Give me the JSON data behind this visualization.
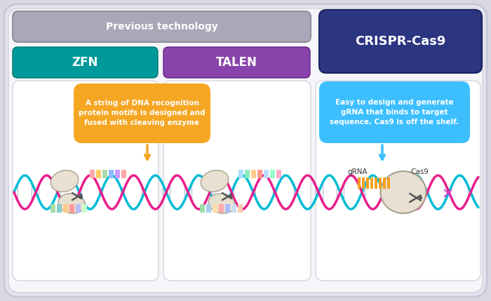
{
  "bg_color": "#d8d8e4",
  "outer_bg": "#d4d4de",
  "main_bg": "#f5f5f8",
  "panel_bg": "#ffffff",
  "prev_tech_box_color": "#a8a8b8",
  "prev_tech_text": "Previous technology",
  "prev_tech_text_color": "#ffffff",
  "zfn_color": "#009999",
  "zfn_text": "ZFN",
  "talen_color": "#8844aa",
  "talen_text": "TALEN",
  "crispr_color": "#2b3580",
  "crispr_text": "CRISPR-Cas9",
  "orange_bubble_color": "#f5a623",
  "orange_bubble_text": "A string of DNA recognition\nprotein motifs is designed and\nfused with cleaving enzyme",
  "blue_bubble_color": "#3dbfff",
  "blue_bubble_text": "Easy to design and generate\ngRNA that binds to target\nsequence. Cas9 is off the shelf.",
  "grna_label": "gRNA",
  "cas9_label": "Cas9",
  "dna_color1": "#00bcd4",
  "dna_color2": "#e91e8c",
  "panel_border_color": "#ccccdd",
  "enzyme_color": "#e8e0d0",
  "enzyme_edge": "#aaa090",
  "scissors_color": "#555555",
  "motif_colors_zfn_top": [
    "#ffaaaa",
    "#ffcc66",
    "#aaddaa",
    "#88bbff",
    "#cc99ff",
    "#ffaaaa"
  ],
  "motif_colors_zfn_bot": [
    "#aaddaa",
    "#88cccc",
    "#ffcc88",
    "#ff9999",
    "#bbbbff",
    "#ccffcc"
  ],
  "motif_colors_talen_top": [
    "#aaddff",
    "#88eebb",
    "#ffcc88",
    "#ff9988",
    "#bbddff",
    "#99ffcc",
    "#ffaacc"
  ],
  "motif_colors_talen_bot": [
    "#99ddaa",
    "#aaccee",
    "#ffddaa",
    "#ffaaaa",
    "#aabbff",
    "#ccddee",
    "#ffccaa"
  ],
  "grna_bar_color": "#f5a020",
  "x_color": "#cc44cc"
}
